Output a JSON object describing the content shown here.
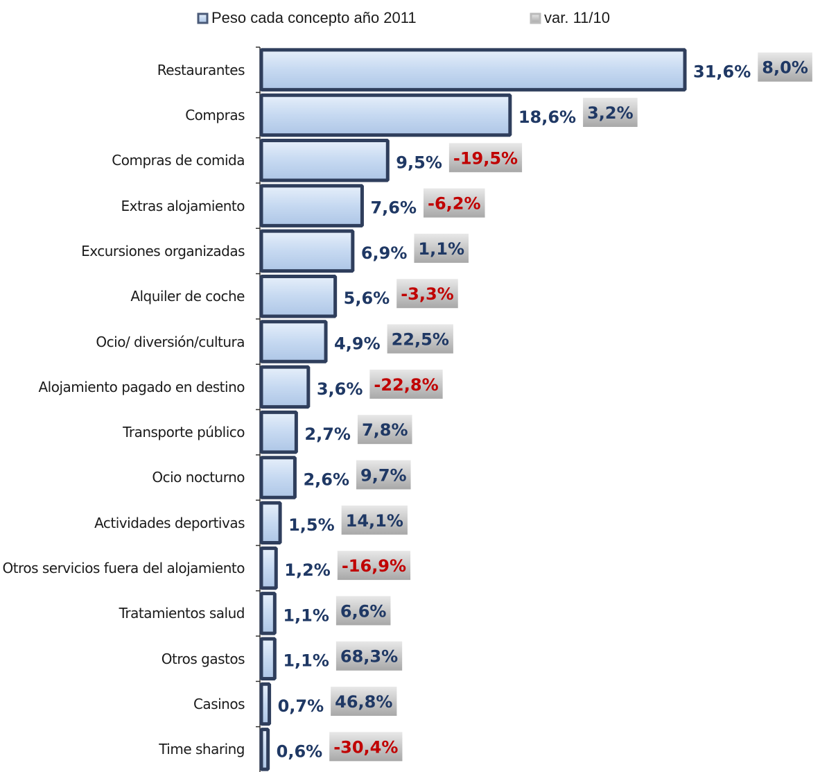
{
  "chart_data": {
    "type": "bar",
    "orientation": "horizontal",
    "categories": [
      "Restaurantes",
      "Compras",
      "Compras de comida",
      "Extras alojamiento",
      "Excursiones organizadas",
      "Alquiler de coche",
      "Ocio/ diversión/cultura",
      "Alojamiento pagado en destino",
      "Transporte público",
      "Ocio nocturno",
      "Actividades deportivas",
      "Otros servicios fuera del alojamiento",
      "Tratamientos salud",
      "Otros gastos",
      "Casinos",
      "Time sharing"
    ],
    "series": [
      {
        "name": "Peso cada concepto año 2011",
        "color": "#c6d9f1",
        "values": [
          31.6,
          18.6,
          9.5,
          7.6,
          6.9,
          5.6,
          4.9,
          3.6,
          2.7,
          2.6,
          1.5,
          1.2,
          1.1,
          1.1,
          0.7,
          0.6
        ],
        "value_labels": [
          "31,6%",
          "18,6%",
          "9,5%",
          "7,6%",
          "6,9%",
          "5,6%",
          "4,9%",
          "3,6%",
          "2,7%",
          "2,6%",
          "1,5%",
          "1,2%",
          "1,1%",
          "1,1%",
          "0,7%",
          "0,6%"
        ]
      },
      {
        "name": "var. 11/10",
        "color": "#c8c8c8",
        "label_color": "#1f3864",
        "negative_color": "#c00000",
        "values": [
          8.0,
          3.2,
          -19.5,
          -6.2,
          1.1,
          -3.3,
          22.5,
          -22.8,
          7.8,
          9.7,
          14.1,
          -16.9,
          6.6,
          68.3,
          46.8,
          -30.4
        ],
        "value_labels": [
          "8,0%",
          "3,2%",
          "-19,5%",
          "-6,2%",
          "1,1%",
          "-3,3%",
          "22,5%",
          "-22,8%",
          "7,8%",
          "9,7%",
          "14,1%",
          "-16,9%",
          "6,6%",
          "68,3%",
          "46,8%",
          "-30,4%"
        ]
      }
    ],
    "xlim": [
      0,
      40
    ],
    "label_color": "#1f3864",
    "legend": "top"
  }
}
